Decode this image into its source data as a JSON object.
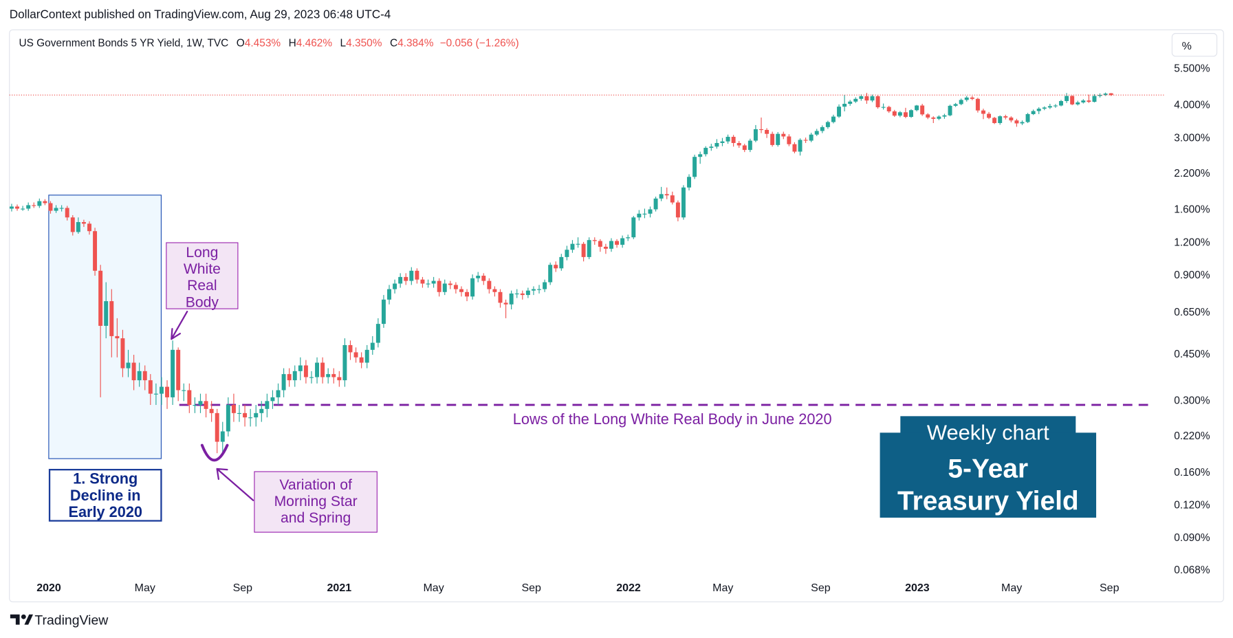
{
  "header": {
    "published": "DollarContext published on TradingView.com, Aug 29, 2023 06:48 UTC-4"
  },
  "chart_data": {
    "type": "candlestick",
    "symbol": "US Government Bonds 5 YR Yield, 1W, TVC",
    "readout": [
      {
        "key": "O",
        "text": "4.453%"
      },
      {
        "key": "H",
        "text": "4.462%"
      },
      {
        "key": "L",
        "text": "4.350%"
      },
      {
        "key": "C",
        "text": "4.384%"
      }
    ],
    "change": "−0.056 (−1.26%)",
    "unit": "%",
    "open": [
      1.62,
      1.65,
      1.62,
      1.62,
      1.67,
      1.66,
      1.73,
      1.7,
      1.59,
      1.63,
      1.63,
      1.5,
      1.32,
      1.44,
      1.42,
      1.33,
      0.94,
      0.58,
      0.72,
      0.53,
      0.52,
      0.4,
      0.42,
      0.36,
      0.39,
      0.36,
      0.32,
      0.32,
      0.34,
      0.31,
      0.47,
      0.33,
      0.33,
      0.29,
      0.29,
      0.3,
      0.28,
      0.27,
      0.21,
      0.23,
      0.29,
      0.27,
      0.27,
      0.26,
      0.26,
      0.27,
      0.28,
      0.3,
      0.31,
      0.33,
      0.38,
      0.36,
      0.39,
      0.41,
      0.37,
      0.37,
      0.42,
      0.37,
      0.38,
      0.37,
      0.36,
      0.49,
      0.46,
      0.44,
      0.42,
      0.47,
      0.5,
      0.59,
      0.73,
      0.8,
      0.84,
      0.89,
      0.86,
      0.94,
      0.87,
      0.84,
      0.84,
      0.86,
      0.78,
      0.84,
      0.83,
      0.8,
      0.78,
      0.75,
      0.88,
      0.9,
      0.86,
      0.8,
      0.78,
      0.71,
      0.7,
      0.77,
      0.77,
      0.76,
      0.79,
      0.8,
      0.8,
      0.85,
      0.99,
      0.96,
      1.06,
      1.13,
      1.19,
      1.19,
      1.06,
      1.23,
      1.22,
      1.16,
      1.14,
      1.22,
      1.18,
      1.25,
      1.26,
      1.5,
      1.55,
      1.55,
      1.61,
      1.77,
      1.84,
      1.82,
      1.71,
      1.5,
      1.95,
      2.14,
      2.55,
      2.61,
      2.76,
      2.79,
      2.88,
      2.92,
      3.04,
      2.88,
      2.82,
      2.71,
      2.94,
      3.25,
      3.23,
      3.12,
      2.83,
      3.12,
      3.05,
      2.85,
      2.67,
      2.96,
      2.94,
      3.1,
      3.2,
      3.31,
      3.46,
      3.63,
      3.96,
      4.06,
      4.14,
      4.24,
      4.34,
      4.18,
      4.34,
      3.94,
      3.95,
      3.8,
      3.66,
      3.77,
      3.62,
      3.84,
      4.0,
      3.7,
      3.6,
      3.56,
      3.63,
      3.67,
      3.99,
      4.05,
      4.2,
      4.29,
      4.24,
      3.83,
      3.72,
      3.59,
      3.43,
      3.64,
      3.6,
      3.51,
      3.42,
      3.46,
      3.71,
      3.81,
      3.89,
      3.93,
      3.98,
      4.0,
      4.16,
      4.35,
      4.04,
      4.11,
      4.18,
      4.13,
      4.35,
      4.39,
      4.453
    ],
    "high": [
      1.69,
      1.68,
      1.66,
      1.71,
      1.71,
      1.77,
      1.76,
      1.73,
      1.67,
      1.67,
      1.66,
      1.53,
      1.5,
      1.47,
      1.45,
      1.37,
      0.99,
      0.85,
      0.8,
      0.62,
      0.56,
      0.47,
      0.45,
      0.42,
      0.41,
      0.38,
      0.35,
      0.37,
      0.36,
      0.51,
      0.48,
      0.35,
      0.35,
      0.31,
      0.32,
      0.32,
      0.3,
      0.28,
      0.25,
      0.31,
      0.32,
      0.29,
      0.29,
      0.28,
      0.29,
      0.3,
      0.32,
      0.33,
      0.35,
      0.4,
      0.4,
      0.41,
      0.44,
      0.43,
      0.39,
      0.44,
      0.44,
      0.4,
      0.4,
      0.39,
      0.52,
      0.51,
      0.48,
      0.46,
      0.49,
      0.53,
      0.62,
      0.76,
      0.83,
      0.87,
      0.92,
      0.92,
      0.97,
      0.96,
      0.89,
      0.87,
      0.89,
      0.88,
      0.87,
      0.86,
      0.85,
      0.82,
      0.8,
      0.91,
      0.93,
      0.92,
      0.88,
      0.82,
      0.8,
      0.73,
      0.79,
      0.8,
      0.79,
      0.81,
      0.82,
      0.83,
      0.87,
      1.01,
      1.02,
      1.09,
      1.17,
      1.23,
      1.26,
      1.21,
      1.26,
      1.26,
      1.24,
      1.19,
      1.25,
      1.24,
      1.28,
      1.29,
      1.52,
      1.6,
      1.62,
      1.65,
      1.8,
      1.96,
      1.95,
      1.88,
      1.74,
      1.99,
      2.19,
      2.6,
      2.67,
      2.8,
      2.86,
      2.98,
      3.01,
      3.1,
      3.09,
      2.93,
      2.86,
      2.99,
      3.37,
      3.6,
      3.28,
      3.18,
      3.17,
      3.18,
      3.11,
      2.9,
      3.0,
      3.02,
      3.15,
      3.26,
      3.36,
      3.5,
      3.69,
      4.04,
      4.39,
      4.2,
      4.3,
      4.41,
      4.47,
      4.4,
      4.38,
      4.07,
      3.99,
      3.85,
      3.81,
      3.92,
      3.87,
      4.02,
      4.06,
      3.74,
      3.64,
      3.67,
      3.72,
      4.03,
      4.09,
      4.25,
      4.35,
      4.35,
      4.28,
      3.89,
      3.78,
      3.62,
      3.67,
      3.69,
      3.64,
      3.56,
      3.51,
      3.75,
      3.86,
      3.94,
      3.97,
      4.06,
      4.05,
      4.2,
      4.46,
      4.37,
      4.17,
      4.23,
      4.4,
      4.42,
      4.45,
      4.48,
      4.462
    ],
    "low": [
      1.58,
      1.59,
      1.59,
      1.59,
      1.63,
      1.63,
      1.67,
      1.55,
      1.56,
      1.58,
      1.46,
      1.28,
      1.3,
      1.38,
      1.29,
      0.9,
      0.31,
      0.52,
      0.44,
      0.44,
      0.37,
      0.37,
      0.33,
      0.34,
      0.33,
      0.29,
      0.29,
      0.29,
      0.28,
      0.29,
      0.3,
      0.3,
      0.27,
      0.27,
      0.27,
      0.26,
      0.25,
      0.19,
      0.19,
      0.22,
      0.25,
      0.25,
      0.24,
      0.24,
      0.24,
      0.25,
      0.26,
      0.28,
      0.29,
      0.31,
      0.34,
      0.34,
      0.36,
      0.35,
      0.35,
      0.35,
      0.35,
      0.35,
      0.35,
      0.34,
      0.34,
      0.43,
      0.42,
      0.4,
      0.4,
      0.45,
      0.48,
      0.57,
      0.7,
      0.77,
      0.81,
      0.83,
      0.83,
      0.84,
      0.81,
      0.81,
      0.81,
      0.75,
      0.76,
      0.8,
      0.77,
      0.75,
      0.72,
      0.73,
      0.85,
      0.83,
      0.77,
      0.75,
      0.68,
      0.62,
      0.67,
      0.74,
      0.73,
      0.74,
      0.76,
      0.77,
      0.78,
      0.83,
      0.93,
      0.94,
      1.03,
      1.1,
      1.15,
      1.02,
      1.04,
      1.18,
      1.11,
      1.09,
      1.11,
      1.15,
      1.15,
      1.22,
      1.24,
      1.46,
      1.49,
      1.5,
      1.58,
      1.73,
      1.76,
      1.68,
      1.45,
      1.47,
      1.9,
      2.1,
      2.4,
      2.56,
      2.69,
      2.74,
      2.8,
      2.86,
      2.79,
      2.76,
      2.66,
      2.66,
      2.9,
      3.14,
      3.01,
      2.79,
      2.79,
      2.98,
      2.8,
      2.63,
      2.58,
      2.88,
      2.9,
      3.06,
      3.14,
      3.26,
      3.42,
      3.59,
      3.8,
      3.99,
      4.09,
      4.17,
      4.06,
      4.12,
      3.89,
      3.86,
      3.75,
      3.62,
      3.61,
      3.58,
      3.59,
      3.8,
      3.65,
      3.55,
      3.43,
      3.52,
      3.56,
      3.64,
      3.95,
      4.01,
      4.14,
      4.19,
      3.76,
      3.55,
      3.55,
      3.4,
      3.38,
      3.54,
      3.45,
      3.32,
      3.37,
      3.43,
      3.68,
      3.71,
      3.84,
      3.88,
      3.92,
      3.97,
      4.09,
      4.01,
      4.0,
      4.07,
      4.09,
      4.11,
      4.29,
      4.35,
      4.35
    ],
    "close": [
      1.65,
      1.62,
      1.62,
      1.67,
      1.66,
      1.73,
      1.7,
      1.59,
      1.63,
      1.63,
      1.5,
      1.32,
      1.44,
      1.42,
      1.33,
      0.94,
      0.58,
      0.72,
      0.53,
      0.52,
      0.4,
      0.42,
      0.36,
      0.39,
      0.36,
      0.32,
      0.32,
      0.34,
      0.31,
      0.47,
      0.33,
      0.33,
      0.29,
      0.29,
      0.3,
      0.28,
      0.27,
      0.21,
      0.23,
      0.29,
      0.27,
      0.27,
      0.26,
      0.26,
      0.27,
      0.28,
      0.3,
      0.31,
      0.33,
      0.38,
      0.36,
      0.39,
      0.41,
      0.37,
      0.37,
      0.42,
      0.37,
      0.38,
      0.37,
      0.36,
      0.49,
      0.46,
      0.44,
      0.42,
      0.47,
      0.5,
      0.59,
      0.73,
      0.8,
      0.84,
      0.89,
      0.86,
      0.94,
      0.87,
      0.84,
      0.84,
      0.86,
      0.78,
      0.84,
      0.83,
      0.8,
      0.78,
      0.75,
      0.88,
      0.9,
      0.86,
      0.8,
      0.78,
      0.71,
      0.7,
      0.77,
      0.77,
      0.76,
      0.79,
      0.8,
      0.8,
      0.85,
      0.99,
      0.96,
      1.06,
      1.13,
      1.19,
      1.19,
      1.06,
      1.23,
      1.22,
      1.16,
      1.14,
      1.22,
      1.18,
      1.25,
      1.26,
      1.5,
      1.55,
      1.55,
      1.61,
      1.77,
      1.84,
      1.82,
      1.71,
      1.5,
      1.95,
      2.14,
      2.55,
      2.61,
      2.76,
      2.79,
      2.88,
      2.92,
      3.04,
      2.88,
      2.82,
      2.71,
      2.94,
      3.25,
      3.23,
      3.12,
      2.83,
      3.12,
      3.05,
      2.85,
      2.67,
      2.96,
      2.94,
      3.1,
      3.2,
      3.31,
      3.46,
      3.63,
      3.96,
      4.06,
      4.14,
      4.24,
      4.34,
      4.18,
      4.34,
      3.94,
      3.95,
      3.8,
      3.66,
      3.77,
      3.62,
      3.84,
      4.0,
      3.7,
      3.6,
      3.56,
      3.63,
      3.67,
      3.99,
      4.05,
      4.2,
      4.29,
      4.24,
      3.83,
      3.72,
      3.59,
      3.43,
      3.64,
      3.6,
      3.51,
      3.42,
      3.46,
      3.71,
      3.81,
      3.89,
      3.93,
      3.98,
      4.0,
      4.16,
      4.35,
      4.04,
      4.11,
      4.18,
      4.13,
      4.35,
      4.39,
      4.44,
      4.384
    ],
    "up_color": "#26a69a",
    "down_color": "#ef5350",
    "xlim": [
      -0.4,
      207.5
    ],
    "xticks": [
      {
        "value": 6.7,
        "label": "2020"
      },
      {
        "value": 24,
        "label": "May"
      },
      {
        "value": 41.6,
        "label": "Sep"
      },
      {
        "value": 59,
        "label": "2021"
      },
      {
        "value": 76,
        "label": "May"
      },
      {
        "value": 93.6,
        "label": "Sep"
      },
      {
        "value": 111.1,
        "label": "2022"
      },
      {
        "value": 128.1,
        "label": "May"
      },
      {
        "value": 145.7,
        "label": "Sep"
      },
      {
        "value": 163.1,
        "label": "2023"
      },
      {
        "value": 180.1,
        "label": "May"
      },
      {
        "value": 197.7,
        "label": "Sep"
      }
    ],
    "ylim": [
      0.0635,
      7.76
    ],
    "log_scale": true,
    "grid": false,
    "yticks": [
      {
        "value": 5.5,
        "label": "5.500%"
      },
      {
        "value": 4,
        "label": "4.000%"
      },
      {
        "value": 3,
        "label": "3.000%"
      },
      {
        "value": 2.2,
        "label": "2.200%"
      },
      {
        "value": 1.6,
        "label": "1.600%"
      },
      {
        "value": 1.2,
        "label": "1.200%"
      },
      {
        "value": 0.9,
        "label": "0.900%"
      },
      {
        "value": 0.65,
        "label": "0.650%"
      },
      {
        "value": 0.45,
        "label": "0.450%"
      },
      {
        "value": 0.3,
        "label": "0.300%"
      },
      {
        "value": 0.22,
        "label": "0.220%"
      },
      {
        "value": 0.16,
        "label": "0.160%"
      },
      {
        "value": 0.12,
        "label": "0.120%"
      },
      {
        "value": 0.09,
        "label": "0.090%"
      },
      {
        "value": 0.068,
        "label": "0.068%"
      }
    ],
    "last_price_line": true,
    "reference_line": {
      "value": 0.29,
      "color": "#7b1fa2",
      "label": "Lows of the Long White Real Body in June 2020"
    },
    "annotations": [
      "Long White Real Body",
      "1. Strong Decline in Early 2020",
      "Variation of Morning Star and Spring"
    ],
    "badge": {
      "subtitle": "Weekly chart",
      "title": "5-Year Treasury Yield"
    }
  },
  "footer": {
    "brand": "TradingView"
  }
}
